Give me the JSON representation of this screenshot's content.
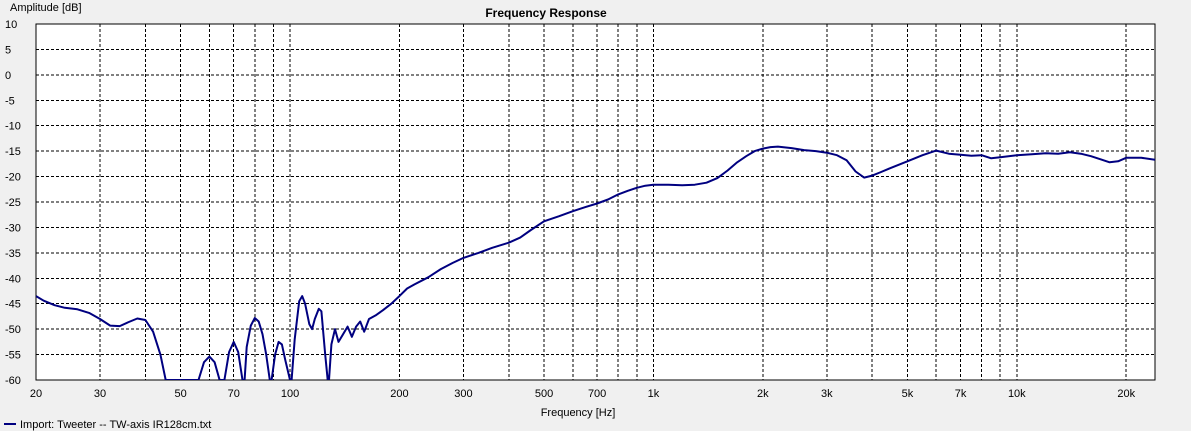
{
  "chart_data": {
    "type": "line",
    "title": "Frequency Response",
    "xlabel": "Frequency [Hz]",
    "ylabel": "Amplitude [dB]",
    "x_scale": "log",
    "xlim": [
      20,
      24000
    ],
    "ylim": [
      -60,
      10
    ],
    "grid": true,
    "legend_position": "bottom-left",
    "line_color": "#000080",
    "y_ticks": [
      10,
      5,
      0,
      -5,
      -10,
      -15,
      -20,
      -25,
      -30,
      -35,
      -40,
      -45,
      -50,
      -55,
      -60
    ],
    "x_major_ticks": [
      20,
      30,
      50,
      70,
      100,
      200,
      300,
      500,
      700,
      1000,
      2000,
      3000,
      5000,
      7000,
      10000,
      20000
    ],
    "x_tick_labels": [
      "20",
      "30",
      "50",
      "70",
      "100",
      "200",
      "300",
      "500",
      "700",
      "1k",
      "2k",
      "3k",
      "5k",
      "7k",
      "10k",
      "20k"
    ],
    "x_minor_ticks": [
      40,
      60,
      80,
      90,
      400,
      600,
      800,
      900,
      4000,
      6000,
      8000,
      9000
    ],
    "series": [
      {
        "name": "Import: Tweeter -- TW-axis IR128cm.txt",
        "points": [
          [
            20,
            -43.5
          ],
          [
            21,
            -44.4
          ],
          [
            22.5,
            -45.3
          ],
          [
            24,
            -45.8
          ],
          [
            26,
            -46.1
          ],
          [
            28,
            -46.8
          ],
          [
            30,
            -48.0
          ],
          [
            32,
            -49.3
          ],
          [
            34,
            -49.4
          ],
          [
            36,
            -48.6
          ],
          [
            38,
            -47.9
          ],
          [
            40,
            -48.2
          ],
          [
            42,
            -50.5
          ],
          [
            44,
            -55.0
          ],
          [
            45.5,
            -60.0
          ],
          [
            56,
            -60.0
          ],
          [
            58,
            -56.5
          ],
          [
            60,
            -55.4
          ],
          [
            62,
            -56.5
          ],
          [
            64,
            -60.0
          ],
          [
            66,
            -60.0
          ],
          [
            68,
            -54.5
          ],
          [
            70,
            -52.5
          ],
          [
            72,
            -54.5
          ],
          [
            74,
            -60.0
          ],
          [
            75,
            -60.0
          ],
          [
            76,
            -53.5
          ],
          [
            78,
            -49.3
          ],
          [
            80,
            -47.8
          ],
          [
            82,
            -48.5
          ],
          [
            84,
            -51.0
          ],
          [
            86,
            -55.0
          ],
          [
            88,
            -60.0
          ],
          [
            89,
            -60.0
          ],
          [
            91,
            -55.0
          ],
          [
            93,
            -52.5
          ],
          [
            95,
            -53.0
          ],
          [
            97,
            -56.0
          ],
          [
            100,
            -60.0
          ],
          [
            101,
            -60.0
          ],
          [
            103,
            -52.0
          ],
          [
            106,
            -44.5
          ],
          [
            108,
            -43.5
          ],
          [
            110,
            -45.0
          ],
          [
            113,
            -49.0
          ],
          [
            115,
            -50.0
          ],
          [
            117,
            -48.0
          ],
          [
            120,
            -46.0
          ],
          [
            122,
            -46.5
          ],
          [
            125,
            -55.0
          ],
          [
            127,
            -60.0
          ],
          [
            128,
            -60.0
          ],
          [
            130,
            -53.0
          ],
          [
            133,
            -50.0
          ],
          [
            136,
            -52.5
          ],
          [
            140,
            -51.0
          ],
          [
            144,
            -49.5
          ],
          [
            148,
            -51.5
          ],
          [
            152,
            -49.5
          ],
          [
            156,
            -48.5
          ],
          [
            160,
            -50.5
          ],
          [
            165,
            -48.0
          ],
          [
            172,
            -47.3
          ],
          [
            180,
            -46.3
          ],
          [
            190,
            -45.0
          ],
          [
            200,
            -43.5
          ],
          [
            210,
            -42.0
          ],
          [
            220,
            -41.2
          ],
          [
            240,
            -39.8
          ],
          [
            260,
            -38.2
          ],
          [
            280,
            -37.0
          ],
          [
            300,
            -36.0
          ],
          [
            330,
            -35.0
          ],
          [
            360,
            -34.0
          ],
          [
            400,
            -33.0
          ],
          [
            430,
            -32.0
          ],
          [
            460,
            -30.5
          ],
          [
            500,
            -28.8
          ],
          [
            550,
            -27.8
          ],
          [
            600,
            -26.8
          ],
          [
            650,
            -26.0
          ],
          [
            700,
            -25.3
          ],
          [
            750,
            -24.5
          ],
          [
            800,
            -23.5
          ],
          [
            850,
            -22.8
          ],
          [
            900,
            -22.2
          ],
          [
            950,
            -21.8
          ],
          [
            1000,
            -21.6
          ],
          [
            1100,
            -21.6
          ],
          [
            1200,
            -21.7
          ],
          [
            1300,
            -21.6
          ],
          [
            1400,
            -21.2
          ],
          [
            1500,
            -20.3
          ],
          [
            1600,
            -18.8
          ],
          [
            1700,
            -17.2
          ],
          [
            1800,
            -16.0
          ],
          [
            1900,
            -15.0
          ],
          [
            2000,
            -14.5
          ],
          [
            2100,
            -14.2
          ],
          [
            2200,
            -14.1
          ],
          [
            2400,
            -14.4
          ],
          [
            2600,
            -14.8
          ],
          [
            2800,
            -15.0
          ],
          [
            3000,
            -15.3
          ],
          [
            3200,
            -15.8
          ],
          [
            3400,
            -16.8
          ],
          [
            3600,
            -19.0
          ],
          [
            3800,
            -20.2
          ],
          [
            4000,
            -19.8
          ],
          [
            4200,
            -19.2
          ],
          [
            4500,
            -18.3
          ],
          [
            5000,
            -17.0
          ],
          [
            5500,
            -15.8
          ],
          [
            6000,
            -14.9
          ],
          [
            6500,
            -15.5
          ],
          [
            7000,
            -15.7
          ],
          [
            7500,
            -15.9
          ],
          [
            8000,
            -15.8
          ],
          [
            8500,
            -16.4
          ],
          [
            9000,
            -16.2
          ],
          [
            10000,
            -15.8
          ],
          [
            11000,
            -15.6
          ],
          [
            12000,
            -15.4
          ],
          [
            13000,
            -15.5
          ],
          [
            14000,
            -15.2
          ],
          [
            15000,
            -15.5
          ],
          [
            16000,
            -16.0
          ],
          [
            17000,
            -16.6
          ],
          [
            18000,
            -17.2
          ],
          [
            19000,
            -17.0
          ],
          [
            20000,
            -16.3
          ],
          [
            22000,
            -16.3
          ],
          [
            24000,
            -16.7
          ]
        ]
      }
    ]
  },
  "legend": {
    "label": "Import: Tweeter -- TW-axis IR128cm.txt",
    "swatch_color": "#000080"
  }
}
